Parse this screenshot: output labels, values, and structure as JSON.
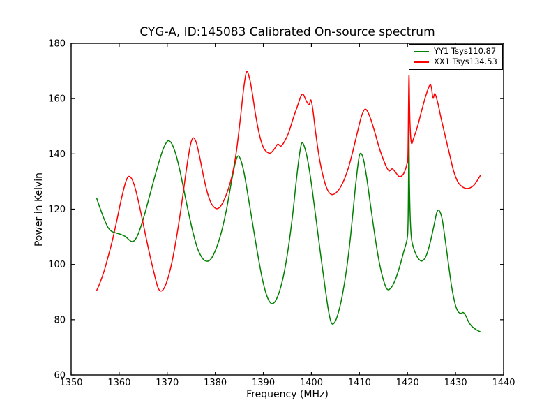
{
  "chart_data": {
    "type": "line",
    "title": "CYG-A, ID:145083 Calibrated On-source spectrum",
    "xlabel": "Frequency (MHz)",
    "ylabel": "Power in Kelvin",
    "xlim": [
      1350,
      1440
    ],
    "ylim": [
      60,
      180
    ],
    "x_ticks": [
      1350,
      1360,
      1370,
      1380,
      1390,
      1400,
      1410,
      1420,
      1430,
      1440
    ],
    "y_ticks": [
      60,
      80,
      100,
      120,
      140,
      160,
      180
    ],
    "grid": false,
    "legend_position": "upper right",
    "background_color": "#ffffff",
    "axis_color": "#000000",
    "series": [
      {
        "name": "YY1 Tsys110.87",
        "id": "yy1",
        "color": "#008000",
        "points": [
          [
            1355.3,
            124.0
          ],
          [
            1356.1,
            120.0
          ],
          [
            1356.9,
            116.3
          ],
          [
            1357.7,
            113.3
          ],
          [
            1358.4,
            112.0
          ],
          [
            1359.3,
            111.4
          ],
          [
            1360.3,
            110.9
          ],
          [
            1361.3,
            110.1
          ],
          [
            1362.0,
            109.0
          ],
          [
            1362.6,
            108.3
          ],
          [
            1363.2,
            108.7
          ],
          [
            1363.9,
            110.8
          ],
          [
            1364.6,
            114.2
          ],
          [
            1365.4,
            118.8
          ],
          [
            1366.2,
            124.0
          ],
          [
            1367.1,
            129.8
          ],
          [
            1368.1,
            136.0
          ],
          [
            1369.1,
            141.5
          ],
          [
            1369.9,
            144.3
          ],
          [
            1370.4,
            144.7
          ],
          [
            1371.0,
            143.5
          ],
          [
            1371.8,
            139.8
          ],
          [
            1372.6,
            134.2
          ],
          [
            1373.4,
            127.5
          ],
          [
            1374.3,
            119.8
          ],
          [
            1375.3,
            112.0
          ],
          [
            1376.3,
            105.8
          ],
          [
            1377.3,
            102.3
          ],
          [
            1378.1,
            101.2
          ],
          [
            1378.9,
            101.6
          ],
          [
            1379.7,
            103.8
          ],
          [
            1380.6,
            107.8
          ],
          [
            1381.5,
            113.3
          ],
          [
            1382.4,
            120.5
          ],
          [
            1383.3,
            129.3
          ],
          [
            1384.1,
            136.3
          ],
          [
            1384.7,
            139.2
          ],
          [
            1385.3,
            137.8
          ],
          [
            1386.0,
            133.0
          ],
          [
            1386.8,
            125.0
          ],
          [
            1387.7,
            115.5
          ],
          [
            1388.7,
            105.0
          ],
          [
            1389.7,
            95.5
          ],
          [
            1390.6,
            89.3
          ],
          [
            1391.3,
            86.5
          ],
          [
            1391.9,
            85.8
          ],
          [
            1392.6,
            87.0
          ],
          [
            1393.4,
            90.5
          ],
          [
            1394.3,
            96.8
          ],
          [
            1395.2,
            106.0
          ],
          [
            1396.1,
            118.0
          ],
          [
            1396.9,
            131.0
          ],
          [
            1397.5,
            139.5
          ],
          [
            1398.0,
            143.9
          ],
          [
            1398.6,
            142.3
          ],
          [
            1399.3,
            137.0
          ],
          [
            1400.1,
            128.0
          ],
          [
            1401.0,
            116.0
          ],
          [
            1402.0,
            102.5
          ],
          [
            1402.9,
            91.0
          ],
          [
            1403.6,
            82.8
          ],
          [
            1404.2,
            78.7
          ],
          [
            1404.9,
            79.2
          ],
          [
            1405.6,
            82.5
          ],
          [
            1406.4,
            88.5
          ],
          [
            1407.3,
            98.0
          ],
          [
            1408.2,
            111.0
          ],
          [
            1409.1,
            127.0
          ],
          [
            1409.8,
            137.5
          ],
          [
            1410.2,
            140.2
          ],
          [
            1410.8,
            138.3
          ],
          [
            1411.5,
            131.5
          ],
          [
            1412.3,
            121.5
          ],
          [
            1413.2,
            110.5
          ],
          [
            1414.1,
            101.0
          ],
          [
            1415.0,
            94.3
          ],
          [
            1415.8,
            91.0
          ],
          [
            1416.6,
            91.6
          ],
          [
            1417.4,
            94.2
          ],
          [
            1418.3,
            98.8
          ],
          [
            1419.2,
            104.5
          ],
          [
            1419.9,
            109.0
          ],
          [
            1420.1,
            114.0
          ],
          [
            1420.2,
            128.0
          ],
          [
            1420.3,
            150.2
          ],
          [
            1420.4,
            130.0
          ],
          [
            1420.6,
            115.5
          ],
          [
            1420.9,
            108.5
          ],
          [
            1421.6,
            104.3
          ],
          [
            1422.4,
            101.8
          ],
          [
            1423.1,
            101.3
          ],
          [
            1423.9,
            103.2
          ],
          [
            1424.7,
            107.8
          ],
          [
            1425.5,
            114.0
          ],
          [
            1426.1,
            118.8
          ],
          [
            1426.6,
            119.5
          ],
          [
            1427.2,
            116.5
          ],
          [
            1427.8,
            109.5
          ],
          [
            1428.5,
            100.5
          ],
          [
            1429.2,
            91.8
          ],
          [
            1429.9,
            85.8
          ],
          [
            1430.5,
            83.0
          ],
          [
            1431.1,
            82.3
          ],
          [
            1431.6,
            82.6
          ],
          [
            1432.1,
            81.5
          ],
          [
            1432.7,
            79.3
          ],
          [
            1433.4,
            77.6
          ],
          [
            1434.3,
            76.4
          ],
          [
            1435.2,
            75.6
          ]
        ]
      },
      {
        "name": "XX1 Tsys134.53",
        "id": "xx1",
        "color": "#ff0000",
        "points": [
          [
            1355.3,
            90.5
          ],
          [
            1356.1,
            93.8
          ],
          [
            1356.9,
            97.8
          ],
          [
            1357.7,
            102.8
          ],
          [
            1358.6,
            108.8
          ],
          [
            1359.5,
            115.8
          ],
          [
            1360.3,
            122.5
          ],
          [
            1361.1,
            128.3
          ],
          [
            1361.7,
            131.3
          ],
          [
            1362.2,
            131.8
          ],
          [
            1362.8,
            130.3
          ],
          [
            1363.5,
            126.5
          ],
          [
            1364.3,
            120.5
          ],
          [
            1365.2,
            113.0
          ],
          [
            1366.2,
            104.8
          ],
          [
            1367.2,
            97.3
          ],
          [
            1368.0,
            92.0
          ],
          [
            1368.6,
            90.4
          ],
          [
            1369.3,
            91.3
          ],
          [
            1370.1,
            94.8
          ],
          [
            1371.0,
            101.0
          ],
          [
            1371.9,
            109.5
          ],
          [
            1372.8,
            119.5
          ],
          [
            1373.6,
            129.5
          ],
          [
            1374.3,
            138.0
          ],
          [
            1374.9,
            143.8
          ],
          [
            1375.4,
            145.8
          ],
          [
            1376.0,
            144.3
          ],
          [
            1376.7,
            139.3
          ],
          [
            1377.5,
            132.3
          ],
          [
            1378.3,
            126.3
          ],
          [
            1379.1,
            122.3
          ],
          [
            1379.9,
            120.5
          ],
          [
            1380.5,
            120.2
          ],
          [
            1381.2,
            121.3
          ],
          [
            1382.0,
            124.0
          ],
          [
            1382.8,
            127.8
          ],
          [
            1383.6,
            133.0
          ],
          [
            1384.4,
            141.0
          ],
          [
            1385.2,
            152.5
          ],
          [
            1385.9,
            163.5
          ],
          [
            1386.5,
            169.7
          ],
          [
            1387.1,
            167.5
          ],
          [
            1387.7,
            162.0
          ],
          [
            1388.4,
            154.0
          ],
          [
            1389.2,
            146.8
          ],
          [
            1390.0,
            142.3
          ],
          [
            1390.8,
            140.6
          ],
          [
            1391.5,
            140.3
          ],
          [
            1392.3,
            141.8
          ],
          [
            1393.0,
            143.5
          ],
          [
            1393.7,
            142.8
          ],
          [
            1394.5,
            144.8
          ],
          [
            1395.3,
            147.8
          ],
          [
            1396.2,
            152.8
          ],
          [
            1397.1,
            157.3
          ],
          [
            1397.8,
            160.8
          ],
          [
            1398.3,
            161.5
          ],
          [
            1398.9,
            159.3
          ],
          [
            1399.5,
            157.8
          ],
          [
            1399.9,
            159.5
          ],
          [
            1400.3,
            156.0
          ],
          [
            1400.9,
            147.5
          ],
          [
            1401.7,
            138.0
          ],
          [
            1402.6,
            130.8
          ],
          [
            1403.4,
            126.8
          ],
          [
            1404.2,
            125.3
          ],
          [
            1405.1,
            125.9
          ],
          [
            1406.0,
            127.8
          ],
          [
            1406.9,
            131.0
          ],
          [
            1407.8,
            135.5
          ],
          [
            1408.7,
            141.5
          ],
          [
            1409.6,
            148.0
          ],
          [
            1410.4,
            153.5
          ],
          [
            1411.1,
            156.1
          ],
          [
            1411.7,
            155.3
          ],
          [
            1412.4,
            152.3
          ],
          [
            1413.2,
            147.8
          ],
          [
            1414.1,
            142.3
          ],
          [
            1414.9,
            138.3
          ],
          [
            1415.6,
            135.3
          ],
          [
            1416.2,
            133.8
          ],
          [
            1416.8,
            134.6
          ],
          [
            1417.4,
            133.6
          ],
          [
            1418.1,
            132.0
          ],
          [
            1418.6,
            131.8
          ],
          [
            1419.3,
            133.2
          ],
          [
            1419.9,
            136.5
          ],
          [
            1420.1,
            140.0
          ],
          [
            1420.3,
            168.3
          ],
          [
            1420.5,
            152.0
          ],
          [
            1420.8,
            144.0
          ],
          [
            1421.3,
            145.8
          ],
          [
            1422.1,
            150.0
          ],
          [
            1423.0,
            156.0
          ],
          [
            1423.9,
            161.5
          ],
          [
            1424.8,
            165.0
          ],
          [
            1425.3,
            160.2
          ],
          [
            1425.7,
            161.8
          ],
          [
            1426.3,
            158.5
          ],
          [
            1427.0,
            152.8
          ],
          [
            1427.8,
            146.8
          ],
          [
            1428.7,
            140.3
          ],
          [
            1429.6,
            133.8
          ],
          [
            1430.5,
            129.8
          ],
          [
            1431.4,
            128.1
          ],
          [
            1432.2,
            127.5
          ],
          [
            1433.0,
            127.7
          ],
          [
            1433.8,
            128.6
          ],
          [
            1434.5,
            130.3
          ],
          [
            1435.2,
            132.3
          ]
        ]
      }
    ]
  }
}
